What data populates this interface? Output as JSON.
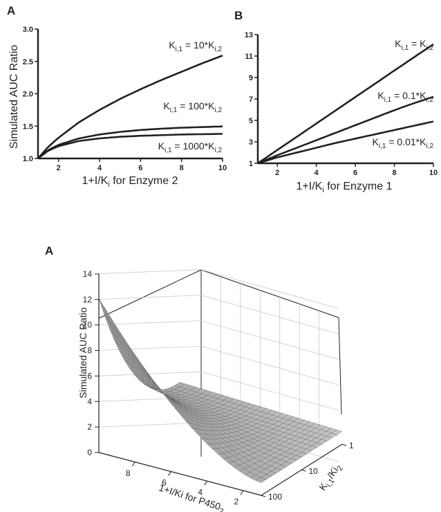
{
  "chart_data": [
    {
      "panel_label": "A",
      "type": "line",
      "xlabel": {
        "main": "1+I/K",
        "sub": "i",
        "rest": " for Enzyme 2"
      },
      "ylabel": "Simulated AUC Ratio",
      "xlim": [
        1,
        10
      ],
      "ylim": [
        1.0,
        3.0
      ],
      "xticks": [
        2,
        4,
        6,
        8,
        10
      ],
      "xtick_labels": [
        "2",
        "4",
        "6",
        "8",
        "10"
      ],
      "yticks": [
        1.0,
        1.5,
        2.0,
        2.5,
        3.0
      ],
      "ytick_labels": [
        "1.0",
        "1.5",
        "2.0",
        "2.5",
        "3.0"
      ],
      "x": [
        1,
        1.5,
        2,
        3,
        4,
        5,
        6,
        7,
        8,
        9,
        10
      ],
      "series": [
        {
          "label": {
            "a": "K",
            "as": "i,1",
            "b": " = 10*K",
            "bs": "i,2"
          },
          "values": [
            1.0,
            1.18,
            1.32,
            1.56,
            1.75,
            1.92,
            2.07,
            2.21,
            2.34,
            2.47,
            2.59
          ]
        },
        {
          "label": {
            "a": "K",
            "as": "i,1",
            "b": " = 100*K",
            "bs": "i,2"
          },
          "values": [
            1.0,
            1.13,
            1.21,
            1.31,
            1.37,
            1.41,
            1.44,
            1.46,
            1.475,
            1.485,
            1.495
          ]
        },
        {
          "label": {
            "a": "K",
            "as": "i,1",
            "b": " = 1000*K",
            "bs": "i,2"
          },
          "values": [
            1.0,
            1.12,
            1.19,
            1.27,
            1.31,
            1.335,
            1.35,
            1.36,
            1.37,
            1.375,
            1.38
          ]
        }
      ]
    },
    {
      "panel_label": "B",
      "type": "line",
      "xlabel": {
        "main": "1+I/K",
        "sub": "i",
        "rest": " for Enzyme 1"
      },
      "ylabel": "",
      "xlim": [
        1,
        10
      ],
      "ylim": [
        1,
        13
      ],
      "xticks": [
        2,
        4,
        6,
        8,
        10
      ],
      "xtick_labels": [
        "2",
        "4",
        "6",
        "8",
        "10"
      ],
      "yticks": [
        1,
        3,
        5,
        7,
        9,
        11,
        13
      ],
      "ytick_labels": [
        "1",
        "3",
        "5",
        "7",
        "9",
        "11",
        "13"
      ],
      "x": [
        1,
        2,
        3,
        4,
        5,
        6,
        7,
        8,
        9,
        10
      ],
      "series": [
        {
          "label": {
            "a": "K",
            "as": "i,1",
            "b": " = K",
            "bs": "i,2"
          },
          "values": [
            1.0,
            2.24,
            3.47,
            4.71,
            5.94,
            7.18,
            8.41,
            9.65,
            10.88,
            12.1
          ]
        },
        {
          "label": {
            "a": "K",
            "as": "i,1",
            "b": " = 0.1*K",
            "bs": "i,2"
          },
          "values": [
            1.0,
            1.75,
            2.45,
            3.15,
            3.85,
            4.55,
            5.25,
            5.95,
            6.6,
            7.2
          ]
        },
        {
          "label": {
            "a": "K",
            "as": "i,1",
            "b": " = 0.01*K",
            "bs": "i,2"
          },
          "values": [
            1.0,
            1.55,
            2.0,
            2.45,
            2.9,
            3.3,
            3.7,
            4.1,
            4.5,
            4.9
          ]
        }
      ]
    },
    {
      "panel_label": "A",
      "type": "surface",
      "zlabel": "Simulated AUC Ratio",
      "xlabel": {
        "main": "1+I/Ki for P450",
        "sub": "2"
      },
      "ylabel": {
        "a": "K",
        "as": "i,1",
        "b": "/Ki",
        "bs": "2"
      },
      "zlim": [
        0,
        14
      ],
      "zticks": [
        0,
        2,
        4,
        6,
        8,
        10,
        12,
        14
      ],
      "ztick_labels": [
        "0",
        "2",
        "4",
        "6",
        "8",
        "10",
        "12",
        "14"
      ],
      "xticks": [
        8,
        6,
        4,
        2
      ],
      "xtick_labels": [
        "8",
        "6",
        "4",
        "2"
      ],
      "yticks": [
        1,
        10,
        100
      ],
      "ytick_labels": [
        "1",
        "10",
        "100"
      ],
      "yscale": "log",
      "corner_values": [
        {
          "x": 10,
          "y": 1,
          "z": 12.1
        },
        {
          "x": 1,
          "y": 1,
          "z": 1.0
        },
        {
          "x": 10,
          "y": 100,
          "z": 1.5
        },
        {
          "x": 1,
          "y": 100,
          "z": 1.0
        }
      ]
    }
  ]
}
